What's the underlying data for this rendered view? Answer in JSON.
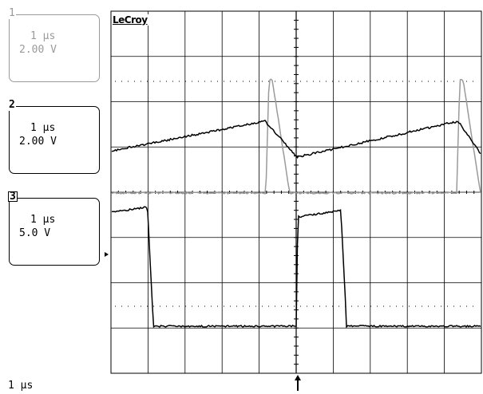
{
  "brand": "LeCroy",
  "channels": [
    {
      "id": "1",
      "time_div": "1 µs",
      "volt_div": "2.00 V",
      "state": "inactive"
    },
    {
      "id": "2",
      "time_div": "1 µs",
      "volt_div": "2.00 V",
      "state": "active"
    },
    {
      "id": "3",
      "time_div": "1 µs",
      "volt_div": "5.0 V",
      "state": "active"
    }
  ],
  "timebase": "1 µs",
  "colors": {
    "trace_primary": "#000000",
    "trace_secondary": "#9a9a9a",
    "grid": "#000000",
    "background": "#ffffff"
  },
  "icons": [
    "trigger-position-arrow",
    "trigger-level-arrow"
  ]
}
